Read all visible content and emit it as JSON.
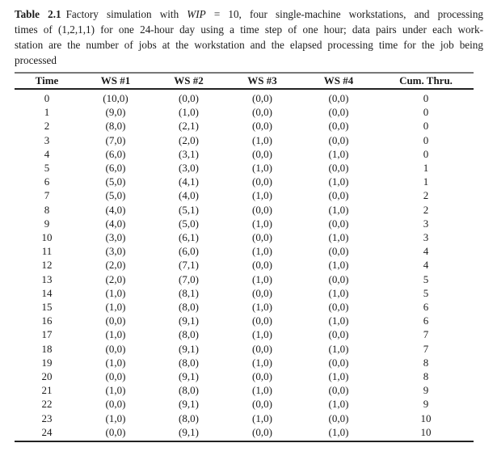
{
  "page": {
    "background_color": "#ffffff",
    "text_color": "#1b1b1b",
    "rule_top_color": "#787878",
    "rule_dark_color": "#222222"
  },
  "caption": {
    "label": "Table 2.1",
    "line1_text_a": "Factory simulation with",
    "line1_wip_var": "WIP",
    "line1_text_b": "= 10, four single-machine workstations, and processing",
    "line2": "times of (1,2,1,1) for one 24-hour day using a time step of one hour; data pairs under each work-",
    "line3": "station are the number of jobs at the workstation and the elapsed processing time for the job being",
    "line4": "processed"
  },
  "table": {
    "columns": [
      "Time",
      "WS #1",
      "WS #2",
      "WS #3",
      "WS #4",
      "Cum. Thru."
    ],
    "rows": [
      [
        "0",
        "(10,0)",
        "(0,0)",
        "(0,0)",
        "(0,0)",
        "0"
      ],
      [
        "1",
        "(9,0)",
        "(1,0)",
        "(0,0)",
        "(0,0)",
        "0"
      ],
      [
        "2",
        "(8,0)",
        "(2,1)",
        "(0,0)",
        "(0,0)",
        "0"
      ],
      [
        "3",
        "(7,0)",
        "(2,0)",
        "(1,0)",
        "(0,0)",
        "0"
      ],
      [
        "4",
        "(6,0)",
        "(3,1)",
        "(0,0)",
        "(1,0)",
        "0"
      ],
      [
        "5",
        "(6,0)",
        "(3,0)",
        "(1,0)",
        "(0,0)",
        "1"
      ],
      [
        "6",
        "(5,0)",
        "(4,1)",
        "(0,0)",
        "(1,0)",
        "1"
      ],
      [
        "7",
        "(5,0)",
        "(4,0)",
        "(1,0)",
        "(0,0)",
        "2"
      ],
      [
        "8",
        "(4,0)",
        "(5,1)",
        "(0,0)",
        "(1,0)",
        "2"
      ],
      [
        "9",
        "(4,0)",
        "(5,0)",
        "(1,0)",
        "(0,0)",
        "3"
      ],
      [
        "10",
        "(3,0)",
        "(6,1)",
        "(0,0)",
        "(1,0)",
        "3"
      ],
      [
        "11",
        "(3,0)",
        "(6,0)",
        "(1,0)",
        "(0,0)",
        "4"
      ],
      [
        "12",
        "(2,0)",
        "(7,1)",
        "(0,0)",
        "(1,0)",
        "4"
      ],
      [
        "13",
        "(2,0)",
        "(7,0)",
        "(1,0)",
        "(0,0)",
        "5"
      ],
      [
        "14",
        "(1,0)",
        "(8,1)",
        "(0,0)",
        "(1,0)",
        "5"
      ],
      [
        "15",
        "(1,0)",
        "(8,0)",
        "(1,0)",
        "(0,0)",
        "6"
      ],
      [
        "16",
        "(0,0)",
        "(9,1)",
        "(0,0)",
        "(1,0)",
        "6"
      ],
      [
        "17",
        "(1,0)",
        "(8,0)",
        "(1,0)",
        "(0,0)",
        "7"
      ],
      [
        "18",
        "(0,0)",
        "(9,1)",
        "(0,0)",
        "(1,0)",
        "7"
      ],
      [
        "19",
        "(1,0)",
        "(8,0)",
        "(1,0)",
        "(0,0)",
        "8"
      ],
      [
        "20",
        "(0,0)",
        "(9,1)",
        "(0,0)",
        "(1,0)",
        "8"
      ],
      [
        "21",
        "(1,0)",
        "(8,0)",
        "(1,0)",
        "(0,0)",
        "9"
      ],
      [
        "22",
        "(0,0)",
        "(9,1)",
        "(0,0)",
        "(1,0)",
        "9"
      ],
      [
        "23",
        "(1,0)",
        "(8,0)",
        "(1,0)",
        "(0,0)",
        "10"
      ],
      [
        "24",
        "(0,0)",
        "(9,1)",
        "(0,0)",
        "(1,0)",
        "10"
      ]
    ]
  }
}
